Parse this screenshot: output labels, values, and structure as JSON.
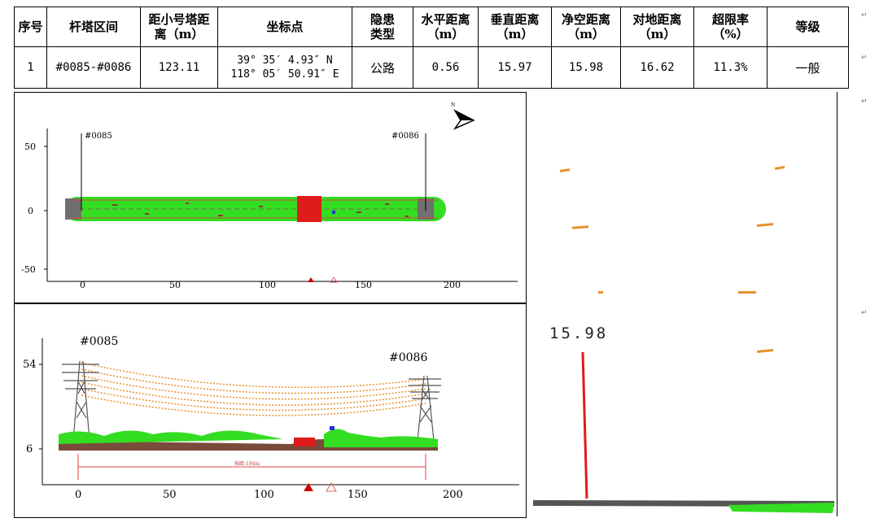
{
  "table": {
    "headers": [
      "序号",
      "杆塔区间",
      "距小号塔距离（m）",
      "坐标点",
      "隐患类型",
      "水平距离（m）",
      "垂直距离（m）",
      "净空距离（m）",
      "对地距离（m）",
      "超限率（%）",
      "等级"
    ],
    "header_lines": {
      "tower_distance": [
        "距小号塔距",
        "离（m）"
      ],
      "hazard_type": [
        "隐患",
        "类型"
      ],
      "horizontal": [
        "水平距离",
        "（m）"
      ],
      "vertical": [
        "垂直距离",
        "（m）"
      ],
      "clearance": [
        "净空距离",
        "（m）"
      ],
      "ground": [
        "对地距离",
        "（m）"
      ],
      "overrun": [
        "超限率",
        "（%）"
      ]
    },
    "row": {
      "index": "1",
      "span": "#0085-#0086",
      "tower_distance": "123.11",
      "coord_lat": "39° 35′ 4.93″ N",
      "coord_lon": "118° 05′ 50.91″ E",
      "hazard_type": "公路",
      "horizontal": "0.56",
      "vertical": "15.97",
      "clearance": "15.98",
      "ground": "16.62",
      "overrun": "11.3%",
      "level": "一般"
    }
  },
  "plan_view": {
    "tower_left": "#0085",
    "tower_right": "#0086",
    "y_ticks": [
      "50",
      "0",
      "-50"
    ],
    "x_ticks": [
      "0",
      "50",
      "100",
      "150",
      "200"
    ],
    "north_label": "N"
  },
  "profile_view": {
    "tower_left": "#0085",
    "tower_right": "#0086",
    "y_ticks": [
      "54",
      "6"
    ],
    "x_ticks": [
      "0",
      "50",
      "100",
      "150",
      "200"
    ],
    "span_label": "档距:184m"
  },
  "cross_section": {
    "distance_label": "15.98"
  },
  "colors": {
    "vegetation": "#33dd22",
    "ground": "#666666",
    "hazard": "#e01b1b",
    "conductor": "#e8902a",
    "tower": "#555555"
  }
}
